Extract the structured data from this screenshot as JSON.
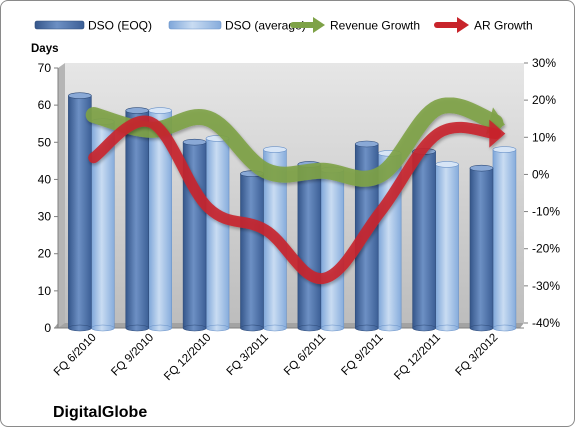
{
  "chart_data": {
    "type": "bar",
    "title": "",
    "company_label": "DigitalGlobe",
    "ylabel": "Days",
    "ylim": [
      0,
      70
    ],
    "y_ticks": [
      "0",
      "10",
      "20",
      "30",
      "40",
      "50",
      "60",
      "70"
    ],
    "y2lim": [
      -40,
      30
    ],
    "y2_ticks": [
      "-40%",
      "-30%",
      "-20%",
      "-10%",
      "0%",
      "10%",
      "20%",
      "30%"
    ],
    "categories": [
      "FQ 6/2010",
      "FQ 9/2010",
      "FQ 12/2010",
      "FQ 3/2011",
      "FQ 6/2011",
      "FQ 9/2011",
      "FQ 12/2011",
      "FQ 3/2012"
    ],
    "series": [
      {
        "name": "DSO (EOQ)",
        "type": "bar",
        "axis": "left",
        "values": [
          62,
          58,
          49.5,
          41,
          43.5,
          49,
          47,
          42.5
        ]
      },
      {
        "name": "DSO (average)",
        "type": "bar",
        "axis": "left",
        "values": [
          55,
          58,
          50.5,
          47.5,
          42,
          46.5,
          43.5,
          47.5
        ]
      },
      {
        "name": "Revenue Growth",
        "type": "arrow-line",
        "axis": "right",
        "unit": "%",
        "values": [
          16,
          12,
          15,
          1,
          1,
          0,
          18,
          14
        ]
      },
      {
        "name": "AR Growth",
        "type": "arrow-line",
        "axis": "right",
        "unit": "%",
        "values": [
          4.5,
          14,
          -9,
          -15,
          -28,
          -10,
          11,
          11
        ]
      }
    ],
    "legend_position": "top",
    "grid": false,
    "colors": {
      "dso_eoq": "#4a6ea5",
      "dso_eoq_light": "#7494c4",
      "dso_avg": "#9cbde6",
      "dso_avg_light": "#c9dcf2",
      "revenue_growth": "#7ea247",
      "ar_growth": "#c8242b",
      "plot_wall": "#c3c3c3",
      "plot_wall_light": "#e2e2e2",
      "floor": "#a6a6a6"
    }
  }
}
